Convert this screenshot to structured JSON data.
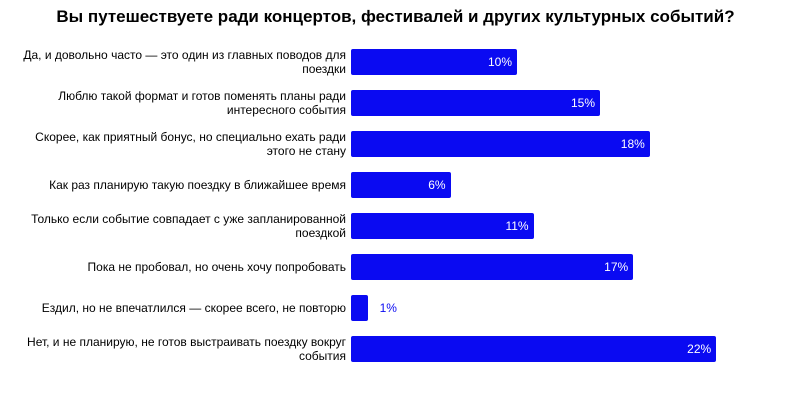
{
  "chart_data": {
    "type": "bar",
    "orientation": "horizontal",
    "title": "Вы путешествуете ради концертов, фестивалей и других культурных событий?",
    "categories": [
      "Да, и довольно часто — это один из главных поводов для поездки",
      "Люблю такой формат и готов поменять планы ради интересного события",
      "Скорее, как приятный бонус, но специально ехать ради этого не стану",
      "Как раз планирую такую поездку в ближайшее время",
      "Только если событие совпадает с уже запланированной поездкой",
      "Пока не пробовал, но очень хочу попробовать",
      "Ездил, но не впечатлился — скорее всего, не повторю",
      "Нет, и не планирую, не готов выстраивать поездку вокруг события"
    ],
    "values": [
      10,
      15,
      18,
      6,
      11,
      17,
      1,
      22
    ],
    "value_labels": [
      "10%",
      "15%",
      "18%",
      "6%",
      "11%",
      "17%",
      "1%",
      "22%"
    ],
    "color": "#0a0af2"
  }
}
